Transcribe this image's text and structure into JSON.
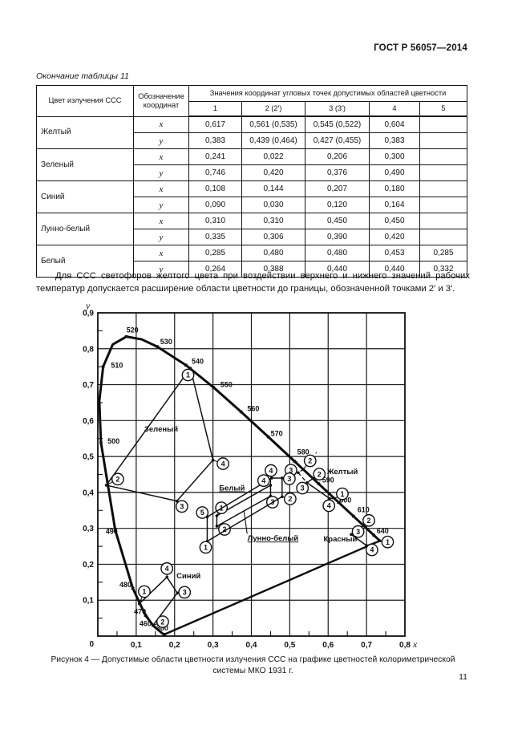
{
  "page": {
    "header_right": "ГОСТ Р 56057—2014",
    "page_number": "11",
    "table_caption": "Окончание таблицы 11",
    "paragraph": "Для ССС светофоров желтого цвета при воздействии верхнего и нижнего значений рабочих температур допускается расширение области цветности до границы, обозначенной точками 2′ и 3′.",
    "figure_caption_line1": "Рисунок 4 — Допустимые области цветности излучения ССС на графике цветностей колориметрической",
    "figure_caption_line2": "системы МКО 1931 г."
  },
  "table": {
    "col1_header": "Цвет излучения ССС",
    "col2_header": "Обозначение координат",
    "values_header": "Значения координат угловых точек допустимых областей цветности",
    "point_headers": [
      "1",
      "2 (2′)",
      "3 (3′)",
      "4",
      "5"
    ],
    "rows": [
      {
        "color": "Желтый",
        "coords": [
          {
            "sym": "x",
            "vals": [
              "0,617",
              "0,561 (0,535)",
              "0,545 (0,522)",
              "0,604",
              ""
            ]
          },
          {
            "sym": "y",
            "vals": [
              "0,383",
              "0,439 (0,464)",
              "0,427 (0,455)",
              "0,383",
              ""
            ]
          }
        ]
      },
      {
        "color": "Зеленый",
        "coords": [
          {
            "sym": "x",
            "vals": [
              "0,241",
              "0,022",
              "0,206",
              "0,300",
              ""
            ]
          },
          {
            "sym": "y",
            "vals": [
              "0,746",
              "0,420",
              "0,376",
              "0,490",
              ""
            ]
          }
        ]
      },
      {
        "color": "Синий",
        "coords": [
          {
            "sym": "x",
            "vals": [
              "0,108",
              "0,144",
              "0,207",
              "0,180",
              ""
            ]
          },
          {
            "sym": "y",
            "vals": [
              "0,090",
              "0,030",
              "0,120",
              "0,164",
              ""
            ]
          }
        ]
      },
      {
        "color": "Лунно-белый",
        "coords": [
          {
            "sym": "x",
            "vals": [
              "0,310",
              "0,310",
              "0,450",
              "0,450",
              ""
            ]
          },
          {
            "sym": "y",
            "vals": [
              "0,335",
              "0,306",
              "0,390",
              "0,420",
              ""
            ]
          }
        ]
      },
      {
        "color": "Белый",
        "coords": [
          {
            "sym": "x",
            "vals": [
              "0,285",
              "0,480",
              "0,480",
              "0,453",
              "0,285"
            ]
          },
          {
            "sym": "y",
            "vals": [
              "0,264",
              "0,388",
              "0,440",
              "0,440",
              "0,332"
            ]
          }
        ]
      }
    ]
  },
  "chart_data": {
    "type": "scatter",
    "title": "Рисунок 4 — Допустимые области цветности излучения ССС на графике цветностей колориметрической системы МКО 1931 г.",
    "xlabel": "x",
    "ylabel": "y",
    "origin_label": "0",
    "xlim": [
      0,
      0.8
    ],
    "ylim": [
      0,
      0.9
    ],
    "grid": true,
    "x_ticks": [
      "0,1",
      "0,2",
      "0,3",
      "0,4",
      "0,5",
      "0,6",
      "0,7",
      "0,8"
    ],
    "y_ticks": [
      "0,1",
      "0,2",
      "0,3",
      "0,4",
      "0,5",
      "0,6",
      "0,7",
      "0,8",
      "0,9"
    ],
    "spectral_locus": [
      [
        0.1741,
        0.005
      ],
      [
        0.1733,
        0.0048
      ],
      [
        0.1714,
        0.0051
      ],
      [
        0.1689,
        0.0069
      ],
      [
        0.1644,
        0.0109
      ],
      [
        0.1566,
        0.0177
      ],
      [
        0.144,
        0.0297
      ],
      [
        0.1241,
        0.0578
      ],
      [
        0.0913,
        0.1327
      ],
      [
        0.0454,
        0.295
      ],
      [
        0.0082,
        0.5384
      ],
      [
        0.0039,
        0.6548
      ],
      [
        0.0139,
        0.7502
      ],
      [
        0.0389,
        0.812
      ],
      [
        0.0743,
        0.8338
      ],
      [
        0.1142,
        0.8262
      ],
      [
        0.1547,
        0.8059
      ],
      [
        0.2296,
        0.7543
      ],
      [
        0.3016,
        0.6923
      ],
      [
        0.3731,
        0.6245
      ],
      [
        0.4441,
        0.5547
      ],
      [
        0.5125,
        0.4866
      ],
      [
        0.5752,
        0.4242
      ],
      [
        0.627,
        0.3725
      ],
      [
        0.6658,
        0.334
      ],
      [
        0.6915,
        0.3083
      ],
      [
        0.7079,
        0.292
      ],
      [
        0.719,
        0.2809
      ],
      [
        0.7347,
        0.2653
      ]
    ],
    "purple_line": [
      [
        0.1741,
        0.005
      ],
      [
        0.7347,
        0.2653
      ]
    ],
    "wavelengths": [
      {
        "t": "380",
        "x": 0.1741,
        "y": 0.005,
        "lx": 0.168,
        "ly": 0.022
      },
      {
        "t": "460",
        "x": 0.144,
        "y": 0.0297,
        "lx": 0.124,
        "ly": 0.035
      },
      {
        "t": "470",
        "x": 0.1241,
        "y": 0.0578,
        "lx": 0.11,
        "ly": 0.068
      },
      {
        "t": "480",
        "x": 0.0913,
        "y": 0.1327,
        "lx": 0.072,
        "ly": 0.143
      },
      {
        "t": "490",
        "x": 0.0454,
        "y": 0.295,
        "lx": 0.036,
        "ly": 0.291
      },
      {
        "t": "500",
        "x": 0.0082,
        "y": 0.5384,
        "lx": 0.041,
        "ly": 0.543
      },
      {
        "t": "510",
        "x": 0.0139,
        "y": 0.7502,
        "lx": 0.05,
        "ly": 0.754
      },
      {
        "t": "520",
        "x": 0.0743,
        "y": 0.8338,
        "lx": 0.09,
        "ly": 0.852
      },
      {
        "t": "530",
        "x": 0.1547,
        "y": 0.8059,
        "lx": 0.178,
        "ly": 0.82
      },
      {
        "t": "540",
        "x": 0.2296,
        "y": 0.7543,
        "lx": 0.26,
        "ly": 0.765
      },
      {
        "t": "550",
        "x": 0.3016,
        "y": 0.6923,
        "lx": 0.335,
        "ly": 0.7
      },
      {
        "t": "560",
        "x": 0.3731,
        "y": 0.6245,
        "lx": 0.405,
        "ly": 0.633
      },
      {
        "t": "570",
        "x": 0.4441,
        "y": 0.5547,
        "lx": 0.466,
        "ly": 0.564
      },
      {
        "t": "580",
        "x": 0.5125,
        "y": 0.4866,
        "lx": 0.535,
        "ly": 0.512
      },
      {
        "t": "590",
        "x": 0.5752,
        "y": 0.4242,
        "lx": 0.6,
        "ly": 0.434
      },
      {
        "t": "600",
        "x": 0.627,
        "y": 0.3725,
        "lx": 0.645,
        "ly": 0.379
      },
      {
        "t": "610",
        "x": 0.6658,
        "y": 0.334,
        "lx": 0.692,
        "ly": 0.352
      },
      {
        "t": "640",
        "x": 0.719,
        "y": 0.2809,
        "lx": 0.742,
        "ly": 0.293
      }
    ],
    "regions": [
      {
        "name": "Зеленый",
        "label": {
          "x": 0.121,
          "y": 0.576,
          "underline": false
        },
        "vertices": [
          {
            "n": "1",
            "x": 0.241,
            "y": 0.746,
            "cx": 0.235,
            "cy": 0.727
          },
          {
            "n": "2",
            "x": 0.022,
            "y": 0.42,
            "cx": 0.052,
            "cy": 0.437
          },
          {
            "n": "3",
            "x": 0.206,
            "y": 0.376,
            "cx": 0.219,
            "cy": 0.361
          },
          {
            "n": "4",
            "x": 0.3,
            "y": 0.49,
            "cx": 0.326,
            "cy": 0.48
          }
        ]
      },
      {
        "name": "Желтый",
        "label": {
          "x": 0.597,
          "y": 0.458,
          "underline": false
        },
        "vertices": [
          {
            "n": "1",
            "x": 0.617,
            "y": 0.383,
            "cx": 0.637,
            "cy": 0.396
          },
          {
            "n": "2",
            "x": 0.561,
            "y": 0.439,
            "cx": 0.577,
            "cy": 0.451
          },
          {
            "n": "3",
            "x": 0.545,
            "y": 0.427,
            "cx": 0.533,
            "cy": 0.412
          },
          {
            "n": "4",
            "x": 0.604,
            "y": 0.383,
            "cx": 0.602,
            "cy": 0.363
          }
        ],
        "dashed_vertices": [
          {
            "n": "2",
            "prime": true,
            "x": 0.535,
            "y": 0.464,
            "cx": 0.553,
            "cy": 0.488
          },
          {
            "n": "3",
            "prime": true,
            "x": 0.522,
            "y": 0.455,
            "cx": 0.503,
            "cy": 0.462
          }
        ],
        "dashed_path": [
          [
            0.561,
            0.439
          ],
          [
            0.535,
            0.464
          ],
          [
            0.522,
            0.455
          ],
          [
            0.545,
            0.427
          ]
        ]
      },
      {
        "name": "Синий",
        "label": {
          "x": 0.205,
          "y": 0.168,
          "underline": false
        },
        "vertices": [
          {
            "n": "1",
            "x": 0.108,
            "y": 0.09,
            "cx": 0.121,
            "cy": 0.124
          },
          {
            "n": "2",
            "x": 0.144,
            "y": 0.03,
            "cx": 0.169,
            "cy": 0.04
          },
          {
            "n": "3",
            "x": 0.207,
            "y": 0.12,
            "cx": 0.226,
            "cy": 0.122
          },
          {
            "n": "4",
            "x": 0.18,
            "y": 0.164,
            "cx": 0.18,
            "cy": 0.188
          }
        ]
      },
      {
        "name": "Лунно-белый",
        "label": {
          "x": 0.39,
          "y": 0.272,
          "underline": true
        },
        "leader": [
          [
            0.389,
            0.285
          ],
          [
            0.381,
            0.347
          ]
        ],
        "vertices": [
          {
            "n": "1",
            "x": 0.31,
            "y": 0.335,
            "cx": 0.322,
            "cy": 0.357
          },
          {
            "n": "2",
            "x": 0.31,
            "y": 0.306,
            "cx": 0.33,
            "cy": 0.297
          },
          {
            "n": "3",
            "x": 0.45,
            "y": 0.39,
            "cx": 0.455,
            "cy": 0.373
          },
          {
            "n": "4",
            "x": 0.45,
            "y": 0.42,
            "cx": 0.451,
            "cy": 0.461
          }
        ]
      },
      {
        "name": "Белый",
        "label": {
          "x": 0.316,
          "y": 0.412,
          "underline": true
        },
        "vertices": [
          {
            "n": "1",
            "x": 0.285,
            "y": 0.264,
            "cx": 0.281,
            "cy": 0.247
          },
          {
            "n": "2",
            "x": 0.48,
            "y": 0.388,
            "cx": 0.501,
            "cy": 0.382
          },
          {
            "n": "3",
            "x": 0.48,
            "y": 0.44,
            "cx": 0.499,
            "cy": 0.438
          },
          {
            "n": "4",
            "x": 0.453,
            "y": 0.44,
            "cx": 0.432,
            "cy": 0.433
          },
          {
            "n": "5",
            "x": 0.285,
            "y": 0.332,
            "cx": 0.272,
            "cy": 0.344
          }
        ]
      },
      {
        "name": "Красный",
        "label": {
          "x": 0.588,
          "y": 0.27,
          "underline": false
        },
        "vertices": [
          {
            "n": "1",
            "x": 0.7347,
            "y": 0.2653,
            "cx": 0.755,
            "cy": 0.262
          },
          {
            "n": "2",
            "x": 0.692,
            "y": 0.308,
            "cx": 0.706,
            "cy": 0.322
          },
          {
            "n": "3",
            "x": 0.66,
            "y": 0.283,
            "cx": 0.678,
            "cy": 0.291
          },
          {
            "n": "4",
            "x": 0.7,
            "y": 0.252,
            "cx": 0.714,
            "cy": 0.24
          }
        ]
      }
    ]
  }
}
